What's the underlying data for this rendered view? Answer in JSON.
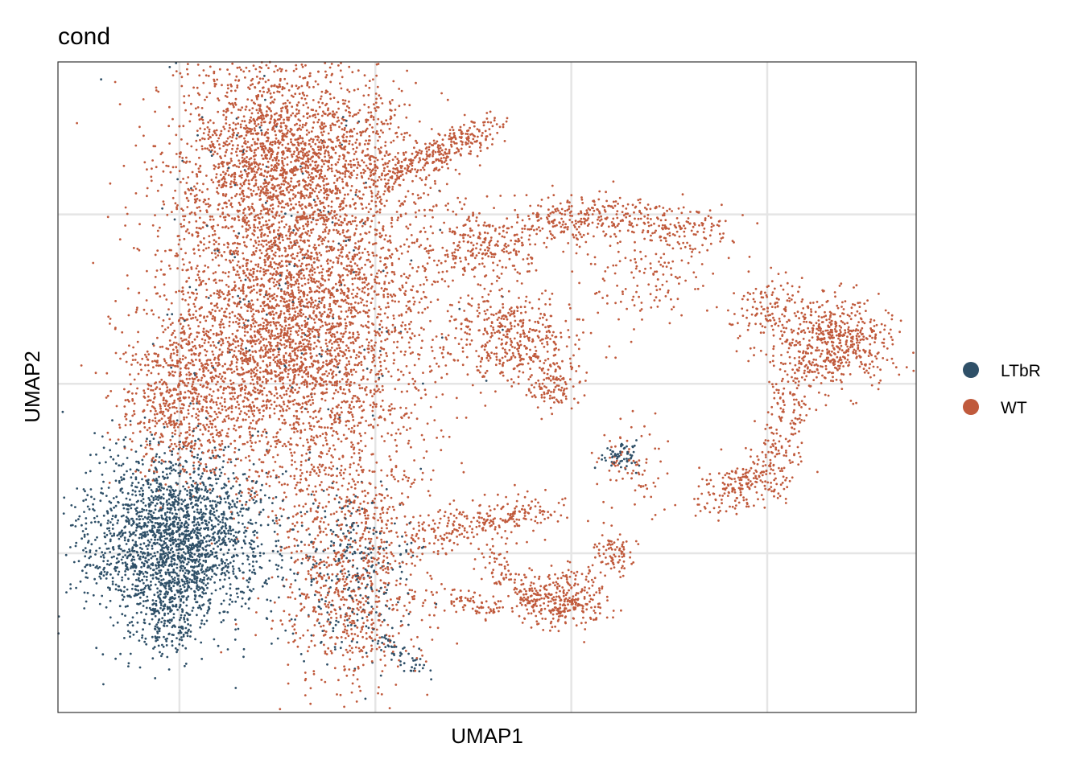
{
  "chart_data": {
    "type": "scatter",
    "title": "cond",
    "xlabel": "UMAP1",
    "ylabel": "UMAP2",
    "xlim": [
      -8.1,
      13.8
    ],
    "ylim": [
      -9.7,
      9.5
    ],
    "x_gridlines": [
      -5,
      0,
      5,
      10
    ],
    "y_gridlines": [
      -5,
      0,
      5
    ],
    "tick_labels_shown": false,
    "grid": true,
    "legend": {
      "placement": "right",
      "entries": [
        {
          "name": "LTbR",
          "color": "#2f5068"
        },
        {
          "name": "WT",
          "color": "#c05a3c"
        }
      ]
    },
    "clusters": [
      {
        "group": "WT",
        "shape": "blob",
        "center": [
          -2.26,
          6.53
        ],
        "sd": [
          1.54,
          1.66
        ],
        "n": 2500
      },
      {
        "group": "WT",
        "shape": "blob",
        "center": [
          -2.16,
          1.35
        ],
        "sd": [
          1.65,
          1.9
        ],
        "n": 3000
      },
      {
        "group": "WT",
        "shape": "blob",
        "center": [
          -4.84,
          -0.55
        ],
        "sd": [
          0.82,
          1.19
        ],
        "n": 600
      },
      {
        "group": "WT",
        "shape": "line",
        "path": [
          [
            0.1,
            6.11
          ],
          [
            2.98,
            7.58
          ]
        ],
        "width": 0.25,
        "n": 300
      },
      {
        "group": "WT",
        "shape": "blob",
        "center": [
          1.13,
          3.56
        ],
        "sd": [
          1.03,
          1.9
        ],
        "n": 200
      },
      {
        "group": "WT",
        "shape": "blob",
        "center": [
          3.6,
          1.35
        ],
        "sd": [
          0.72,
          0.71
        ],
        "n": 400
      },
      {
        "group": "WT",
        "shape": "blob",
        "center": [
          4.53,
          -0.07
        ],
        "sd": [
          0.3,
          0.4
        ],
        "n": 100
      },
      {
        "group": "WT",
        "shape": "blob",
        "center": [
          2.78,
          4.0
        ],
        "sd": [
          0.62,
          0.48
        ],
        "n": 200
      },
      {
        "group": "WT",
        "shape": "line",
        "path": [
          [
            3.8,
            4.66
          ],
          [
            6.07,
            5.01
          ],
          [
            8.95,
            4.42
          ]
        ],
        "width": 0.35,
        "n": 400
      },
      {
        "group": "WT",
        "shape": "blob",
        "center": [
          11.84,
          1.24
        ],
        "sd": [
          0.72,
          0.6
        ],
        "n": 500
      },
      {
        "group": "WT",
        "shape": "blob",
        "center": [
          10.19,
          2.07
        ],
        "sd": [
          0.5,
          0.5
        ],
        "n": 150
      },
      {
        "group": "WT",
        "shape": "line",
        "path": [
          [
            10.8,
            0.88
          ],
          [
            10.19,
            -2.68
          ],
          [
            8.54,
            -3.28
          ]
        ],
        "width": 0.35,
        "n": 400
      },
      {
        "group": "WT",
        "shape": "blob",
        "center": [
          6.9,
          3.25
        ],
        "sd": [
          0.8,
          0.8
        ],
        "n": 150
      },
      {
        "group": "WT",
        "shape": "blob",
        "center": [
          -0.51,
          -5.75
        ],
        "sd": [
          1.03,
          1.66
        ],
        "n": 800
      },
      {
        "group": "LTbR",
        "shape": "blob",
        "center": [
          -0.7,
          -5.6
        ],
        "sd": [
          0.9,
          1.4
        ],
        "n": 300
      },
      {
        "group": "WT",
        "shape": "line",
        "path": [
          [
            1.13,
            -4.35
          ],
          [
            4.42,
            -3.75
          ]
        ],
        "width": 0.3,
        "n": 250
      },
      {
        "group": "WT",
        "shape": "blob",
        "center": [
          4.63,
          -6.44
        ],
        "sd": [
          0.62,
          0.36
        ],
        "n": 300
      },
      {
        "group": "WT",
        "shape": "line",
        "path": [
          [
            2.78,
            -4.82
          ],
          [
            3.81,
            -6.25
          ],
          [
            6.07,
            -5.3
          ],
          [
            6.07,
            -4.6
          ]
        ],
        "width": 0.25,
        "n": 200
      },
      {
        "group": "WT",
        "shape": "line",
        "path": [
          [
            1.95,
            -6.25
          ],
          [
            2.98,
            -6.68
          ]
        ],
        "width": 0.15,
        "n": 60
      },
      {
        "group": "WT",
        "shape": "blob",
        "center": [
          -1.34,
          -2.9
        ],
        "sd": [
          1.23,
          0.71
        ],
        "n": 200
      },
      {
        "group": "WT",
        "shape": "blob",
        "center": [
          6.5,
          -2.5
        ],
        "sd": [
          0.5,
          0.6
        ],
        "n": 80
      },
      {
        "group": "LTbR",
        "shape": "blob",
        "center": [
          -5.14,
          -4.58
        ],
        "sd": [
          1.13,
          1.3
        ],
        "n": 2200
      },
      {
        "group": "LTbR",
        "shape": "line",
        "path": [
          [
            -5.2,
            -6.0
          ],
          [
            -5.35,
            -7.7
          ]
        ],
        "width": 0.3,
        "n": 150
      },
      {
        "group": "LTbR",
        "shape": "blob",
        "center": [
          6.28,
          -2.08
        ],
        "sd": [
          0.25,
          0.24
        ],
        "n": 60
      },
      {
        "group": "LTbR",
        "shape": "blob",
        "center": [
          -2.2,
          3.0
        ],
        "sd": [
          2.0,
          3.0
        ],
        "n": 150
      },
      {
        "group": "LTbR",
        "shape": "line",
        "path": [
          [
            0.3,
            -7.5
          ],
          [
            1.2,
            -8.6
          ]
        ],
        "width": 0.15,
        "n": 50
      }
    ]
  }
}
